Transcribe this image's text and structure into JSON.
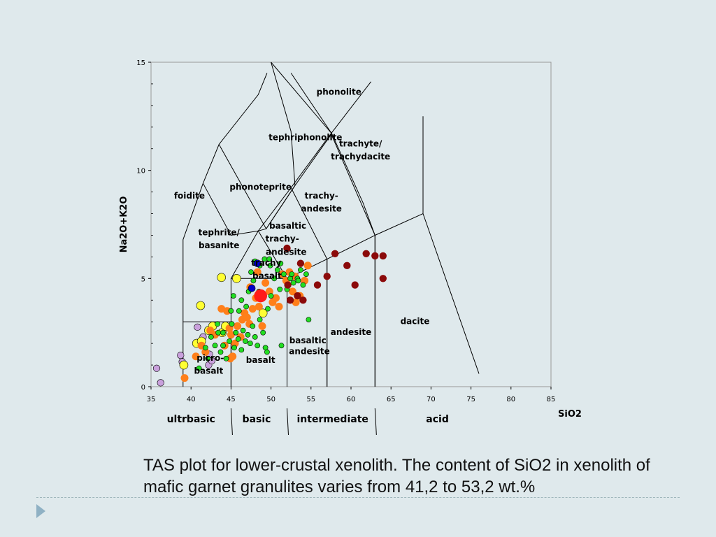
{
  "caption": {
    "line1": "TAS plot for lower-crustal xenolith. The  content of SiO2 in xenolith of",
    "line2": "mafic garnet granulites varies from 41,2 to  53,2 wt.%"
  },
  "colors": {
    "purple": "#c9a0dc",
    "yellow": "#ffff33",
    "orange": "#ff7f1a",
    "green": "#22dd22",
    "blue": "#0000cc",
    "red": "#ff1a1a",
    "darkred": "#8b0a0a"
  },
  "chart_data": {
    "type": "scatter",
    "xlabel": "SiO2",
    "ylabel": "Na2O+K2O",
    "xlim": [
      35,
      85
    ],
    "ylim": [
      0,
      15
    ],
    "xticks": [
      35,
      40,
      45,
      50,
      55,
      60,
      65,
      70,
      75,
      80,
      85
    ],
    "yticks": [
      0,
      5,
      10,
      15
    ],
    "grid": false,
    "field_boundaries": [
      [
        [
          39,
          0
        ],
        [
          39,
          3
        ],
        [
          45,
          3
        ],
        [
          45,
          0
        ]
      ],
      [
        [
          45,
          0
        ],
        [
          45,
          5
        ],
        [
          52,
          5
        ],
        [
          52,
          0
        ]
      ],
      [
        [
          52,
          0
        ],
        [
          52,
          5
        ],
        [
          57,
          5.9
        ],
        [
          57,
          0
        ]
      ],
      [
        [
          57,
          0
        ],
        [
          57,
          5.9
        ],
        [
          63,
          7
        ],
        [
          63,
          0
        ]
      ],
      [
        [
          63,
          0
        ],
        [
          63,
          7
        ],
        [
          69,
          8
        ],
        [
          76,
          0.6
        ]
      ],
      [
        [
          69,
          8
        ],
        [
          69,
          12.5
        ]
      ],
      [
        [
          39,
          3
        ],
        [
          39,
          6.8
        ],
        [
          41.5,
          9.4
        ]
      ],
      [
        [
          41.5,
          9.4
        ],
        [
          43.5,
          11.2
        ],
        [
          48.4,
          13.5
        ],
        [
          49.5,
          14.5
        ]
      ],
      [
        [
          45,
          5
        ],
        [
          48.4,
          7.2
        ],
        [
          52.5,
          9.2
        ],
        [
          57.5,
          11.7
        ],
        [
          62.5,
          14.1
        ]
      ],
      [
        [
          48.4,
          7.2
        ],
        [
          52,
          5
        ]
      ],
      [
        [
          52.5,
          9.2
        ],
        [
          57,
          5.9
        ]
      ],
      [
        [
          57.5,
          11.7
        ],
        [
          63,
          7
        ]
      ],
      [
        [
          41.5,
          9.4
        ],
        [
          45,
          7
        ],
        [
          48.4,
          7.2
        ],
        [
          49.4,
          7.3
        ],
        [
          53,
          9.3
        ],
        [
          57.6,
          11.7
        ],
        [
          50,
          15
        ]
      ],
      [
        [
          52.5,
          14.5
        ],
        [
          57.6,
          11.7
        ]
      ],
      [
        [
          57.6,
          11.7
        ],
        [
          61.5,
          8.5
        ],
        [
          63,
          7
        ]
      ],
      [
        [
          43.5,
          11.2
        ],
        [
          49.4,
          7.3
        ],
        [
          53,
          9.3
        ]
      ],
      [
        [
          53,
          9.3
        ],
        [
          52.5,
          11.8
        ],
        [
          50,
          15
        ]
      ]
    ],
    "field_labels": [
      {
        "text": "phonolite",
        "x": 58.5,
        "y": 13.5
      },
      {
        "text": "tephriphonolite",
        "x": 54.3,
        "y": 11.4
      },
      {
        "text": "trachyte/",
        "x": 61.2,
        "y": 11.1
      },
      {
        "text": "trachydacite",
        "x": 61.2,
        "y": 10.5
      },
      {
        "text": "phonoteprite",
        "x": 48.7,
        "y": 9.1
      },
      {
        "text": "foidite",
        "x": 39.8,
        "y": 8.7
      },
      {
        "text": "trachy-",
        "x": 56.3,
        "y": 8.7
      },
      {
        "text": "andesite",
        "x": 56.3,
        "y": 8.1
      },
      {
        "text": "tephrite/",
        "x": 43.5,
        "y": 7.0
      },
      {
        "text": "basanite",
        "x": 43.5,
        "y": 6.4
      },
      {
        "text": "basaltic",
        "x": 52.1,
        "y": 7.3
      },
      {
        "text": "trachy-",
        "x": 51.4,
        "y": 6.7
      },
      {
        "text": "andesite",
        "x": 51.9,
        "y": 6.1
      },
      {
        "text": "trachy",
        "x": 49.4,
        "y": 5.6
      },
      {
        "text": "basalt",
        "x": 49.5,
        "y": 5.0
      },
      {
        "text": "dacite",
        "x": 68.0,
        "y": 2.9
      },
      {
        "text": "andesite",
        "x": 60.0,
        "y": 2.4
      },
      {
        "text": "basaltic",
        "x": 54.6,
        "y": 2.0
      },
      {
        "text": "andesite",
        "x": 54.8,
        "y": 1.5
      },
      {
        "text": "basalt",
        "x": 48.7,
        "y": 1.1
      },
      {
        "text": "picro-",
        "x": 42.4,
        "y": 1.2
      },
      {
        "text": "basalt",
        "x": 42.2,
        "y": 0.6
      }
    ],
    "composition_labels": [
      {
        "text": "ultrbasic",
        "x": 40.0
      },
      {
        "text": "basic",
        "x": 48.2
      },
      {
        "text": "intermediate",
        "x": 57.7
      },
      {
        "text": "acid",
        "x": 70.8
      }
    ],
    "composition_dividers": [
      45,
      52,
      63
    ],
    "series": [
      {
        "color_key": "purple",
        "points": [
          [
            35.7,
            0.85
          ],
          [
            36.2,
            0.18
          ],
          [
            38.7,
            1.45
          ],
          [
            38.9,
            1.15
          ],
          [
            40.8,
            2.75
          ],
          [
            41.5,
            2.3
          ],
          [
            42.2,
            1.0
          ],
          [
            42.3,
            1.5
          ],
          [
            42.6,
            1.2
          ]
        ]
      },
      {
        "color_key": "yellow",
        "points": [
          [
            39.1,
            1.0
          ],
          [
            40.7,
            2.0
          ],
          [
            41.3,
            2.1
          ],
          [
            41.2,
            3.75
          ],
          [
            42.2,
            2.6
          ],
          [
            42.7,
            2.8
          ],
          [
            43.9,
            2.5
          ],
          [
            44.3,
            2.8
          ],
          [
            43.8,
            5.05
          ],
          [
            45.7,
            5.0
          ],
          [
            49.0,
            3.4
          ]
        ]
      },
      {
        "color_key": "orange",
        "points": [
          [
            39.2,
            0.4
          ],
          [
            40.6,
            1.4
          ],
          [
            41.3,
            1.9
          ],
          [
            41.8,
            1.6
          ],
          [
            42.4,
            2.6
          ],
          [
            43.0,
            2.4
          ],
          [
            43.8,
            3.6
          ],
          [
            44.5,
            3.5
          ],
          [
            44.8,
            2.7
          ],
          [
            45.0,
            2.4
          ],
          [
            45.2,
            1.4
          ],
          [
            45.5,
            2.0
          ],
          [
            45.8,
            2.8
          ],
          [
            46.2,
            2.3
          ],
          [
            46.4,
            3.1
          ],
          [
            46.7,
            3.4
          ],
          [
            47.0,
            3.2
          ],
          [
            47.3,
            2.9
          ],
          [
            47.7,
            3.6
          ],
          [
            48.1,
            4.1
          ],
          [
            48.5,
            3.7
          ],
          [
            48.9,
            2.8
          ],
          [
            49.3,
            4.8
          ],
          [
            49.8,
            4.4
          ],
          [
            50.2,
            3.9
          ],
          [
            50.6,
            4.1
          ],
          [
            51.0,
            3.7
          ],
          [
            51.4,
            5.2
          ],
          [
            51.9,
            4.9
          ],
          [
            52.3,
            5.3
          ],
          [
            52.7,
            4.4
          ],
          [
            53.1,
            3.9
          ],
          [
            53.6,
            4.2
          ],
          [
            54.2,
            4.9
          ],
          [
            54.6,
            5.6
          ],
          [
            53.0,
            5.1
          ],
          [
            48.3,
            5.3
          ],
          [
            47.4,
            4.6
          ],
          [
            44.9,
            1.3
          ],
          [
            44.2,
            1.9
          ]
        ]
      },
      {
        "color_key": "green",
        "points": [
          [
            41.0,
            0.85
          ],
          [
            41.8,
            1.8
          ],
          [
            42.1,
            1.3
          ],
          [
            42.5,
            2.3
          ],
          [
            43.0,
            1.9
          ],
          [
            43.4,
            2.5
          ],
          [
            43.7,
            1.6
          ],
          [
            44.0,
            1.9
          ],
          [
            44.4,
            1.3
          ],
          [
            44.8,
            2.1
          ],
          [
            45.1,
            2.9
          ],
          [
            45.4,
            1.8
          ],
          [
            45.6,
            2.5
          ],
          [
            45.9,
            2.2
          ],
          [
            46.3,
            1.7
          ],
          [
            46.5,
            2.6
          ],
          [
            46.8,
            2.1
          ],
          [
            47.1,
            2.4
          ],
          [
            47.4,
            2.0
          ],
          [
            47.7,
            2.8
          ],
          [
            48.0,
            2.3
          ],
          [
            48.3,
            1.9
          ],
          [
            48.6,
            3.1
          ],
          [
            49.0,
            2.5
          ],
          [
            49.3,
            1.8
          ],
          [
            49.6,
            3.6
          ],
          [
            50.0,
            4.2
          ],
          [
            50.4,
            5.0
          ],
          [
            50.8,
            5.4
          ],
          [
            51.2,
            5.7
          ],
          [
            51.6,
            5.2
          ],
          [
            52.0,
            4.5
          ],
          [
            52.4,
            5.0
          ],
          [
            52.8,
            4.8
          ],
          [
            53.3,
            5.0
          ],
          [
            53.7,
            5.4
          ],
          [
            54.0,
            4.7
          ],
          [
            54.4,
            5.2
          ],
          [
            54.7,
            3.1
          ],
          [
            51.3,
            1.9
          ],
          [
            49.5,
            1.6
          ],
          [
            47.5,
            5.3
          ],
          [
            48.0,
            5.8
          ],
          [
            48.6,
            5.6
          ],
          [
            49.2,
            5.9
          ],
          [
            49.9,
            5.6
          ],
          [
            47.2,
            4.4
          ],
          [
            46.3,
            4.0
          ],
          [
            45.3,
            4.2
          ],
          [
            46.0,
            3.5
          ],
          [
            44.0,
            2.5
          ],
          [
            43.3,
            2.9
          ],
          [
            45.0,
            3.5
          ],
          [
            46.9,
            3.7
          ],
          [
            49.8,
            5.9
          ],
          [
            51.1,
            4.5
          ],
          [
            52.6,
            5.2
          ],
          [
            53.4,
            4.9
          ],
          [
            47.8,
            4.9
          ],
          [
            48.5,
            4.4
          ]
        ]
      },
      {
        "color_key": "blue",
        "points": [
          [
            47.6,
            4.55
          ],
          [
            48.3,
            5.7
          ]
        ]
      },
      {
        "color_key": "red",
        "points": [
          [
            48.7,
            4.2
          ]
        ]
      },
      {
        "color_key": "darkred",
        "points": [
          [
            52.0,
            6.4
          ],
          [
            52.4,
            4.0
          ],
          [
            52.1,
            4.7
          ],
          [
            53.3,
            4.2
          ],
          [
            53.7,
            5.7
          ],
          [
            54.0,
            4.0
          ],
          [
            55.8,
            4.7
          ],
          [
            57.0,
            5.1
          ],
          [
            58.0,
            6.15
          ],
          [
            59.5,
            5.6
          ],
          [
            60.5,
            4.7
          ],
          [
            61.9,
            6.15
          ],
          [
            63.0,
            6.05
          ],
          [
            64.0,
            6.05
          ],
          [
            64.0,
            5.0
          ]
        ]
      }
    ]
  }
}
